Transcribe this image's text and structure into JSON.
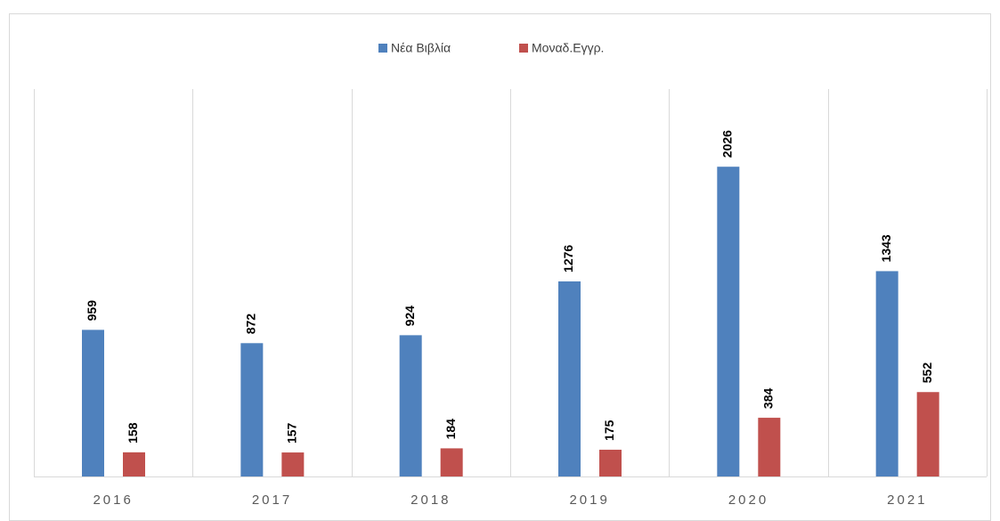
{
  "chart_data": {
    "type": "bar",
    "categories": [
      "2016",
      "2017",
      "2018",
      "2019",
      "2020",
      "2021"
    ],
    "series": [
      {
        "name": "Νέα Βιβλία",
        "color": "#4f81bd",
        "values": [
          959,
          872,
          924,
          1276,
          2026,
          1343
        ]
      },
      {
        "name": "Μοναδ.Εγγρ.",
        "color": "#c0504d",
        "values": [
          158,
          157,
          184,
          175,
          384,
          552
        ]
      }
    ],
    "ylim": [
      0,
      3000
    ],
    "legend": "top"
  }
}
